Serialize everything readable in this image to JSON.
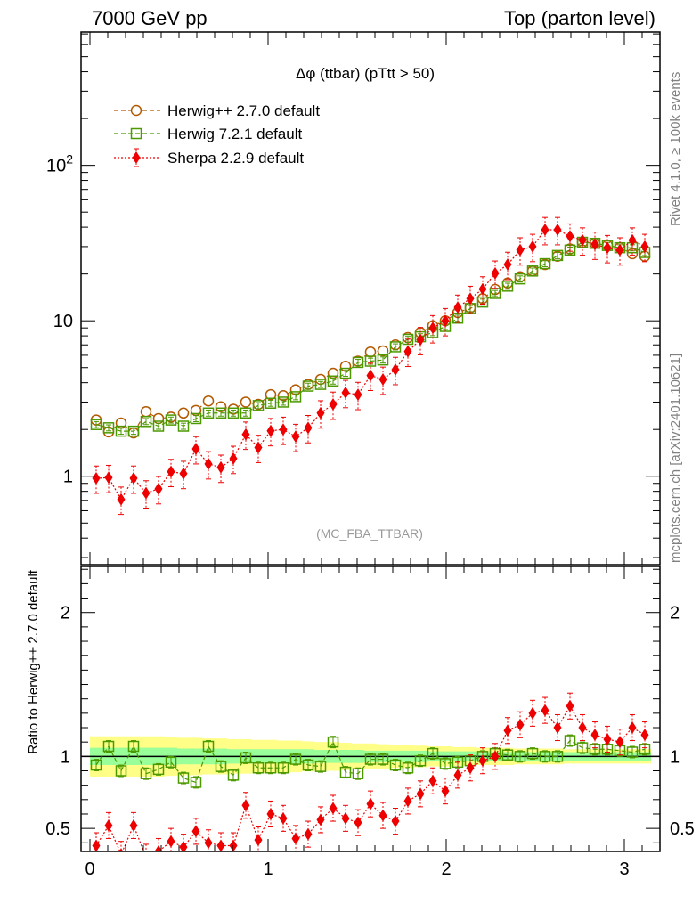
{
  "header": {
    "left": "7000 GeV pp",
    "right": "Top (parton level)"
  },
  "side_text": {
    "top": "Rivet 4.1.0, ≥ 100k events",
    "bottom": "mcplots.cern.ch [arXiv:2401.10621]"
  },
  "colors": {
    "herwigpp": "#b35900",
    "herwig7": "#4d9900",
    "sherpa": "#ee0000",
    "band_inner": "#99ff99",
    "band_outer": "#ffff88"
  },
  "chart_data": [
    {
      "type": "line",
      "title": "Δφ (ttbar) (pTtt > 50)",
      "watermark": "(MC_FBA_TTBAR)",
      "yscale": "log",
      "xlim": [
        -0.05,
        3.2
      ],
      "ylim": [
        0.27,
        720
      ],
      "ytick_labels": [
        "1",
        "10",
        "10^2"
      ],
      "legend_position": "top-left",
      "x": [
        0.035,
        0.105,
        0.175,
        0.245,
        0.315,
        0.385,
        0.455,
        0.525,
        0.595,
        0.665,
        0.735,
        0.805,
        0.875,
        0.945,
        1.015,
        1.085,
        1.155,
        1.225,
        1.295,
        1.365,
        1.435,
        1.505,
        1.575,
        1.645,
        1.715,
        1.785,
        1.855,
        1.925,
        1.995,
        2.065,
        2.135,
        2.205,
        2.275,
        2.345,
        2.415,
        2.485,
        2.555,
        2.625,
        2.695,
        2.765,
        2.835,
        2.905,
        2.975,
        3.045,
        3.115
      ],
      "series": [
        {
          "name": "Herwig++ 2.7.0 default",
          "marker": "open-circle",
          "line": "dashed",
          "values": [
            2.3,
            1.93,
            2.2,
            1.9,
            2.6,
            2.35,
            2.4,
            2.55,
            2.65,
            3.05,
            2.8,
            2.7,
            3.0,
            2.9,
            3.35,
            3.3,
            3.6,
            3.9,
            4.2,
            4.6,
            5.1,
            5.5,
            6.3,
            6.4,
            7.0,
            7.8,
            8.4,
            9.3,
            10.0,
            11.3,
            12.1,
            13.9,
            15.9,
            17.5,
            19.2,
            20.9,
            23.0,
            26.0,
            29.0,
            32.0,
            31.5,
            30.5,
            29.5,
            27.0,
            26.0
          ]
        },
        {
          "name": "Herwig 7.2.1 default",
          "marker": "open-square",
          "line": "dashed",
          "values": [
            2.15,
            2.05,
            1.95,
            1.95,
            2.25,
            2.1,
            2.3,
            2.1,
            2.35,
            2.55,
            2.55,
            2.55,
            2.55,
            2.85,
            2.95,
            3.0,
            3.25,
            3.8,
            3.9,
            4.1,
            4.6,
            5.4,
            5.5,
            5.6,
            6.8,
            7.6,
            7.9,
            8.4,
            9.2,
            10.4,
            12.0,
            13.2,
            15.0,
            16.7,
            18.6,
            20.9,
            23.3,
            26.3,
            28.5,
            32.0,
            31.5,
            30.5,
            29.5,
            29.5,
            27.5
          ]
        },
        {
          "name": "Sherpa 2.2.9 default",
          "marker": "filled-diamond",
          "line": "dotted",
          "values": [
            0.97,
            0.98,
            0.71,
            0.97,
            0.78,
            0.83,
            1.07,
            1.04,
            1.5,
            1.2,
            1.14,
            1.3,
            1.86,
            1.53,
            1.96,
            2.0,
            1.8,
            2.05,
            2.55,
            2.9,
            3.45,
            3.35,
            4.45,
            4.2,
            4.85,
            6.35,
            7.55,
            9.0,
            10.0,
            12.2,
            13.9,
            16.0,
            20.2,
            23.0,
            28.5,
            30.0,
            38.5,
            38.5,
            35.0,
            33.0,
            31.0,
            29.5,
            28.5,
            33.0,
            30.0
          ]
        }
      ]
    },
    {
      "type": "line",
      "ylabel": "Ratio to Herwig++ 2.7.0 default",
      "xlim": [
        -0.05,
        3.2
      ],
      "ylim": [
        0.34,
        2.32
      ],
      "xtick_labels": [
        "0",
        "1",
        "2",
        "3"
      ],
      "ytick_labels": [
        "0.5",
        "1",
        "2"
      ],
      "band_inner_halfwidth": [
        0.06,
        0.06,
        0.06,
        0.06,
        0.06,
        0.06,
        0.06,
        0.055,
        0.055,
        0.055,
        0.055,
        0.05,
        0.05,
        0.05,
        0.05,
        0.05,
        0.05,
        0.05,
        0.045,
        0.045,
        0.045,
        0.045,
        0.04,
        0.04,
        0.04,
        0.04,
        0.04,
        0.035,
        0.035,
        0.035,
        0.035,
        0.03,
        0.03,
        0.03,
        0.03,
        0.03,
        0.03,
        0.03,
        0.03,
        0.03,
        0.03,
        0.03,
        0.03,
        0.03,
        0.03
      ],
      "band_outer_halfwidth": [
        0.14,
        0.14,
        0.14,
        0.14,
        0.14,
        0.14,
        0.135,
        0.13,
        0.13,
        0.125,
        0.125,
        0.12,
        0.12,
        0.115,
        0.115,
        0.11,
        0.11,
        0.105,
        0.1,
        0.1,
        0.095,
        0.09,
        0.09,
        0.085,
        0.08,
        0.08,
        0.075,
        0.07,
        0.07,
        0.065,
        0.065,
        0.06,
        0.06,
        0.06,
        0.055,
        0.055,
        0.055,
        0.055,
        0.05,
        0.05,
        0.05,
        0.05,
        0.05,
        0.05,
        0.05
      ],
      "series": [
        {
          "name": "Herwig 7.2.1 default",
          "values": [
            0.94,
            1.07,
            0.9,
            1.07,
            0.88,
            0.91,
            0.96,
            0.85,
            0.82,
            1.07,
            0.93,
            0.87,
            0.99,
            0.92,
            0.92,
            0.92,
            0.98,
            0.94,
            0.93,
            1.1,
            0.89,
            0.88,
            0.98,
            0.98,
            0.94,
            0.92,
            0.97,
            1.02,
            0.95,
            0.96,
            0.97,
            1.0,
            1.02,
            1.01,
            1.0,
            1.02,
            1.0,
            1.0,
            1.11,
            1.06,
            1.05,
            1.05,
            1.04,
            1.03,
            1.05
          ]
        },
        {
          "name": "Sherpa 2.2.9 default",
          "values": [
            0.38,
            0.52,
            0.32,
            0.52,
            0.3,
            0.34,
            0.41,
            0.37,
            0.48,
            0.4,
            0.38,
            0.38,
            0.66,
            0.42,
            0.6,
            0.57,
            0.43,
            0.46,
            0.56,
            0.64,
            0.57,
            0.54,
            0.67,
            0.59,
            0.55,
            0.69,
            0.74,
            0.83,
            0.76,
            0.87,
            0.92,
            0.97,
            1.0,
            1.18,
            1.22,
            1.3,
            1.32,
            1.2,
            1.35,
            1.2,
            1.15,
            1.12,
            1.1,
            1.2,
            1.15
          ]
        }
      ]
    }
  ]
}
